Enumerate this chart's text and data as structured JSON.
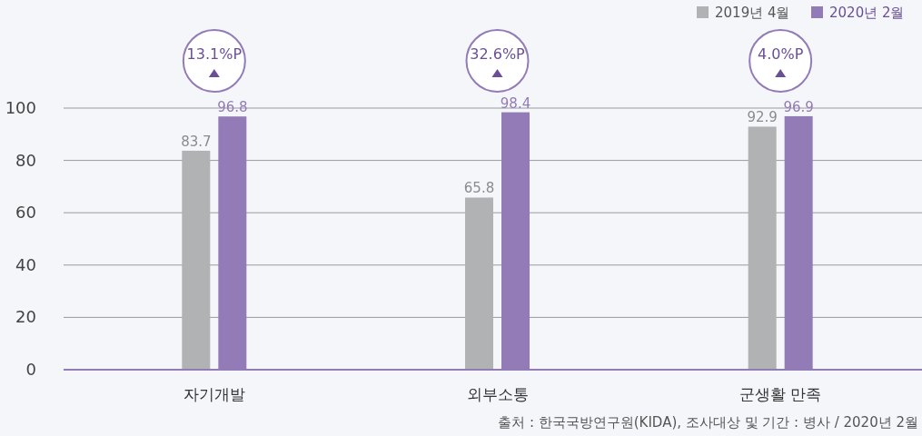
{
  "chart_data": {
    "type": "bar",
    "categories": [
      "자기개발",
      "외부소통",
      "군생활 만족"
    ],
    "series": [
      {
        "name": "2019년 4월",
        "color": "#b1b2b4",
        "values": [
          83.7,
          65.8,
          92.9
        ]
      },
      {
        "name": "2020년 2월",
        "color": "#927bb6",
        "values": [
          96.8,
          98.4,
          96.9
        ]
      }
    ],
    "ylim": [
      0,
      100
    ],
    "yticks": [
      0,
      20,
      40,
      60,
      80,
      100
    ],
    "grid": "y",
    "legend": "top right",
    "data_labels": true,
    "annotations": [
      "13.1%P",
      "32.6%P",
      "4.0%P",
      "출처 : 한국국방연구원(KIDA), 조사대상 및 기간 : 병사 / 2020년 2월"
    ]
  }
}
